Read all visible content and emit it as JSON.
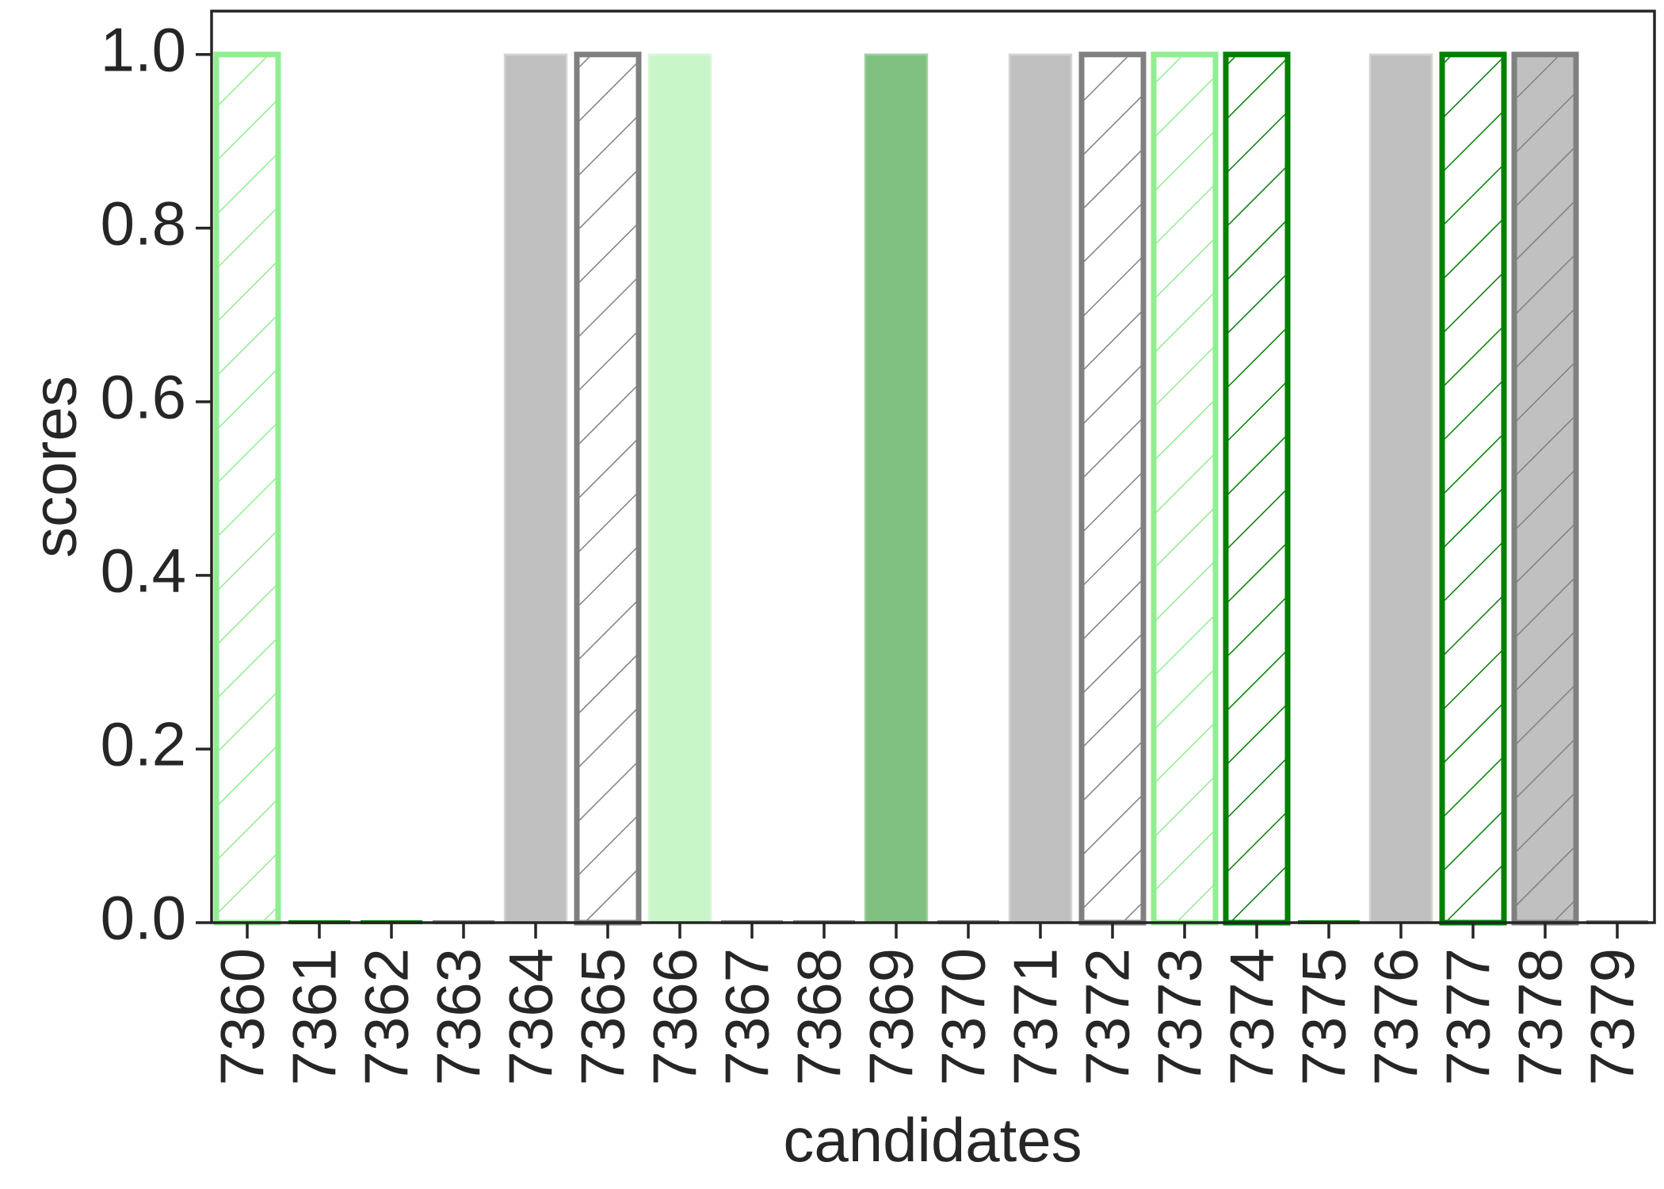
{
  "chart_data": {
    "type": "bar",
    "xlabel": "candidates",
    "ylabel": "scores",
    "title": "",
    "ylim": [
      0,
      1.05
    ],
    "yticks": [
      0.0,
      0.2,
      0.4,
      0.6,
      0.8,
      1.0
    ],
    "ytick_labels": [
      "0.0",
      "0.2",
      "0.4",
      "0.6",
      "0.8",
      "1.0"
    ],
    "grid": false,
    "legend": "none",
    "categories": [
      "7360",
      "7361",
      "7362",
      "7363",
      "7364",
      "7365",
      "7366",
      "7367",
      "7368",
      "7369",
      "7370",
      "7371",
      "7372",
      "7373",
      "7374",
      "7375",
      "7376",
      "7377",
      "7378",
      "7379"
    ],
    "values": [
      1.0,
      0.0,
      0.0,
      0.0,
      1.0,
      1.0,
      1.0,
      0.0,
      0.0,
      1.0,
      0.0,
      1.0,
      1.0,
      1.0,
      1.0,
      0.0,
      1.0,
      1.0,
      1.0,
      0.0
    ],
    "bar_styles": [
      {
        "fill": "#ffffff",
        "stroke": "#90ee90",
        "hatch": true,
        "hatch_color": "#90ee90"
      },
      {
        "fill": "#008000",
        "stroke": "#008000",
        "hatch": false
      },
      {
        "fill": "#008000",
        "stroke": "#008000",
        "hatch": false
      },
      {
        "fill": "#808080",
        "stroke": "#808080",
        "hatch": false
      },
      {
        "fill": "#c0c0c0",
        "stroke": "#d4d4d4",
        "hatch": false
      },
      {
        "fill": "#ffffff",
        "stroke": "#808080",
        "hatch": true,
        "hatch_color": "#808080"
      },
      {
        "fill": "#c8f6c8",
        "stroke": "#d8f8d8",
        "hatch": false
      },
      {
        "fill": "#808080",
        "stroke": "#808080",
        "hatch": false
      },
      {
        "fill": "#808080",
        "stroke": "#808080",
        "hatch": false
      },
      {
        "fill": "#80c080",
        "stroke": "#a0d0a0",
        "hatch": false
      },
      {
        "fill": "#808080",
        "stroke": "#808080",
        "hatch": false
      },
      {
        "fill": "#c0c0c0",
        "stroke": "#d4d4d4",
        "hatch": false
      },
      {
        "fill": "#ffffff",
        "stroke": "#808080",
        "hatch": true,
        "hatch_color": "#808080"
      },
      {
        "fill": "#ffffff",
        "stroke": "#90ee90",
        "hatch": true,
        "hatch_color": "#90ee90"
      },
      {
        "fill": "#ffffff",
        "stroke": "#008000",
        "hatch": true,
        "hatch_color": "#008000"
      },
      {
        "fill": "#008000",
        "stroke": "#008000",
        "hatch": false
      },
      {
        "fill": "#c0c0c0",
        "stroke": "#d4d4d4",
        "hatch": false
      },
      {
        "fill": "#ffffff",
        "stroke": "#008000",
        "hatch": true,
        "hatch_color": "#008000"
      },
      {
        "fill": "#c0c0c0",
        "stroke": "#808080",
        "hatch": true,
        "hatch_color": "#808080"
      },
      {
        "fill": "#808080",
        "stroke": "#808080",
        "hatch": false
      }
    ]
  }
}
